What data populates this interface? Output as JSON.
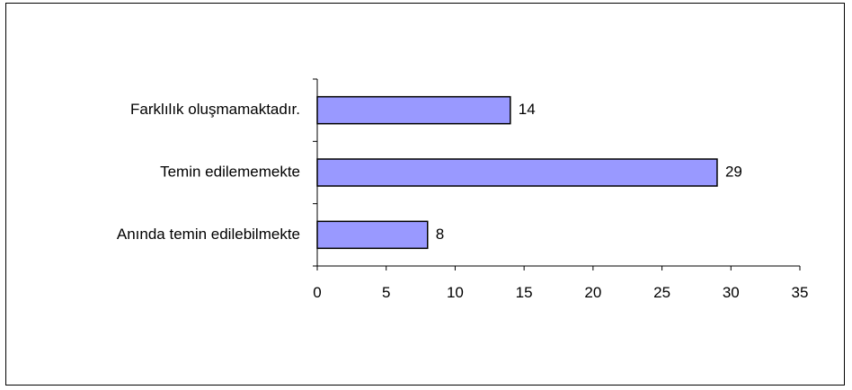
{
  "chart_data": {
    "type": "bar",
    "orientation": "horizontal",
    "categories": [
      "Farklılık oluşmamaktadır.",
      "Temin edilememekte",
      "Anında temin edilebilmekte"
    ],
    "values": [
      14,
      29,
      8
    ],
    "title": "",
    "xlabel": "",
    "ylabel": "",
    "xlim": [
      0,
      35
    ],
    "xticks": [
      0,
      5,
      10,
      15,
      20,
      25,
      30,
      35
    ],
    "grid": false,
    "legend": "none",
    "bar_color": "#9999ff",
    "bar_edge_color": "#000000"
  }
}
